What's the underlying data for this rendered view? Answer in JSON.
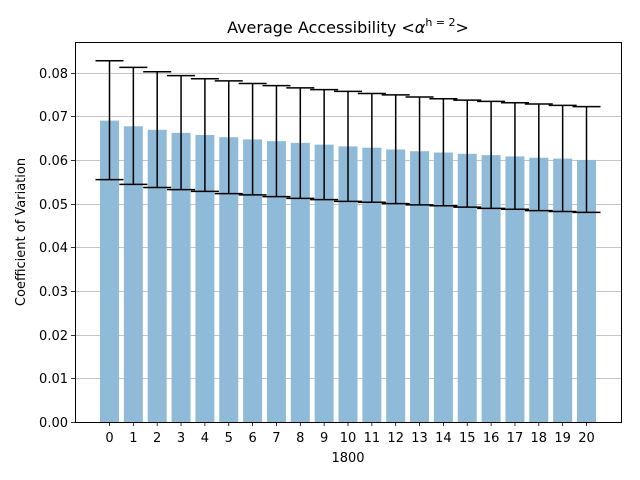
{
  "chart_data": {
    "type": "bar",
    "title_prefix": "Average Accessibility  <",
    "title_symbol": "α",
    "title_superscript": "h = 2",
    "title_suffix": ">",
    "xlabel": "1800",
    "ylabel": "Coefficient of Variation",
    "categories": [
      "0",
      "1",
      "2",
      "3",
      "4",
      "5",
      "6",
      "7",
      "8",
      "9",
      "10",
      "11",
      "12",
      "13",
      "14",
      "15",
      "16",
      "17",
      "18",
      "19",
      "20"
    ],
    "values": [
      0.069,
      0.0677,
      0.0669,
      0.0662,
      0.0657,
      0.0652,
      0.0647,
      0.0643,
      0.0639,
      0.0635,
      0.0631,
      0.0628,
      0.0624,
      0.062,
      0.0617,
      0.0614,
      0.0611,
      0.0608,
      0.0605,
      0.0603,
      0.06
    ],
    "error_upper": [
      0.0827,
      0.0812,
      0.0802,
      0.0793,
      0.0786,
      0.0781,
      0.0775,
      0.077,
      0.0765,
      0.0761,
      0.0757,
      0.0752,
      0.0749,
      0.0744,
      0.074,
      0.0737,
      0.0734,
      0.0731,
      0.0728,
      0.0725,
      0.0722
    ],
    "error_lower": [
      0.0555,
      0.0544,
      0.0537,
      0.0532,
      0.0528,
      0.0523,
      0.052,
      0.0516,
      0.0512,
      0.0509,
      0.0505,
      0.0503,
      0.05,
      0.0497,
      0.0495,
      0.0492,
      0.0489,
      0.0487,
      0.0484,
      0.0482,
      0.048
    ],
    "yticks": [
      "0.00",
      "0.01",
      "0.02",
      "0.03",
      "0.04",
      "0.05",
      "0.06",
      "0.07",
      "0.08"
    ],
    "ylim": [
      0,
      0.087
    ],
    "grid": "y",
    "bar_color": "#8fbbd9",
    "error_color": "#000000"
  }
}
